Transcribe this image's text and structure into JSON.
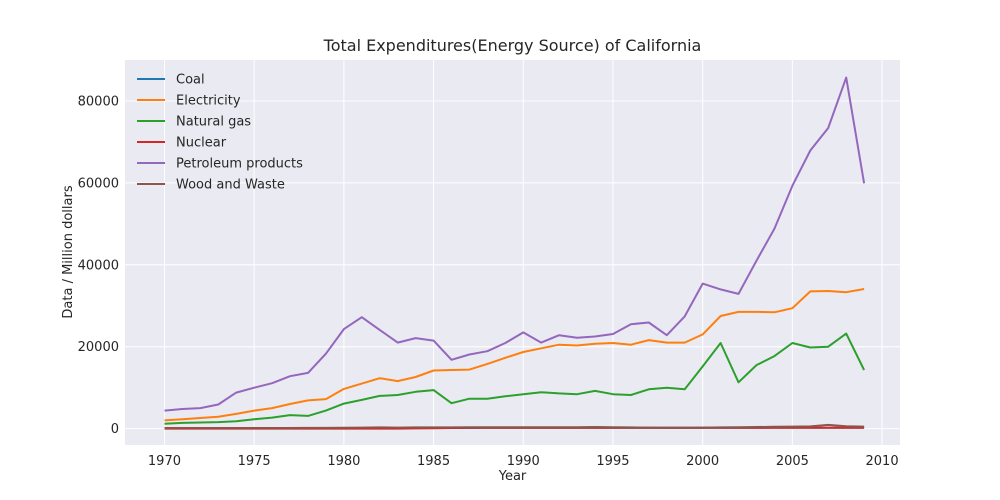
{
  "chart_data": {
    "type": "line",
    "title": "Total Expenditures(Energy Source) of California",
    "xlabel": "Year",
    "ylabel": "Data / Million dollars",
    "xlim": [
      1967.8,
      2011.0
    ],
    "ylim": [
      -4000,
      90000
    ],
    "xticks": [
      1970,
      1975,
      1980,
      1985,
      1990,
      1995,
      2000,
      2005,
      2010
    ],
    "yticks": [
      0,
      20000,
      40000,
      60000,
      80000
    ],
    "grid": true,
    "legend_position": "top-left",
    "x": [
      1970,
      1971,
      1972,
      1973,
      1974,
      1975,
      1976,
      1977,
      1978,
      1979,
      1980,
      1981,
      1982,
      1983,
      1984,
      1985,
      1986,
      1987,
      1988,
      1989,
      1990,
      1991,
      1992,
      1993,
      1994,
      1995,
      1996,
      1997,
      1998,
      1999,
      2000,
      2001,
      2002,
      2003,
      2004,
      2005,
      2006,
      2007,
      2008,
      2009
    ],
    "series": [
      {
        "name": "Coal",
        "color": "#1f77b4",
        "values": [
          120,
          120,
          120,
          120,
          130,
          130,
          130,
          140,
          140,
          150,
          150,
          150,
          150,
          150,
          160,
          160,
          160,
          160,
          170,
          170,
          170,
          170,
          170,
          170,
          170,
          170,
          170,
          170,
          170,
          170,
          180,
          180,
          180,
          180,
          190,
          190,
          200,
          200,
          210,
          200
        ]
      },
      {
        "name": "Electricity",
        "color": "#ff7f0e",
        "values": [
          2000,
          2300,
          2600,
          2900,
          3600,
          4400,
          5000,
          6000,
          6900,
          7200,
          9700,
          11000,
          12300,
          11600,
          12600,
          14200,
          14300,
          14400,
          15800,
          17300,
          18700,
          19600,
          20500,
          20300,
          20700,
          20900,
          20500,
          21600,
          21000,
          21000,
          23000,
          27500,
          28500,
          28500,
          28400,
          29400,
          33500,
          33600,
          33300,
          34100
        ]
      },
      {
        "name": "Natural gas",
        "color": "#2ca02c",
        "values": [
          1200,
          1400,
          1500,
          1600,
          1800,
          2300,
          2700,
          3300,
          3100,
          4400,
          6100,
          7000,
          8000,
          8200,
          9000,
          9400,
          6200,
          7300,
          7300,
          7900,
          8400,
          8900,
          8600,
          8400,
          9200,
          8400,
          8200,
          9600,
          10000,
          9600,
          15200,
          20900,
          11300,
          15500,
          17700,
          20900,
          19800,
          20000,
          23200,
          14300
        ]
      },
      {
        "name": "Nuclear",
        "color": "#d62728",
        "values": [
          0,
          0,
          0,
          0,
          0,
          0,
          0,
          0,
          0,
          0,
          0,
          0,
          0,
          0,
          50,
          100,
          150,
          200,
          200,
          200,
          220,
          220,
          220,
          220,
          230,
          230,
          230,
          200,
          200,
          200,
          200,
          200,
          200,
          200,
          220,
          220,
          220,
          220,
          230,
          230
        ]
      },
      {
        "name": "Petroleum products",
        "color": "#9467bd",
        "values": [
          4400,
          4800,
          5000,
          5900,
          8800,
          10000,
          11100,
          12800,
          13600,
          18300,
          24300,
          27200,
          24100,
          21000,
          22100,
          21500,
          16800,
          18100,
          18900,
          20900,
          23500,
          21000,
          22800,
          22200,
          22500,
          23100,
          25500,
          25900,
          22800,
          27400,
          35400,
          34000,
          32900,
          41000,
          48800,
          59300,
          67900,
          73400,
          85700,
          59900
        ]
      },
      {
        "name": "Wood and Waste",
        "color": "#8c564b",
        "values": [
          150,
          150,
          150,
          150,
          150,
          160,
          160,
          160,
          170,
          180,
          200,
          250,
          300,
          250,
          300,
          300,
          300,
          350,
          350,
          350,
          350,
          350,
          350,
          330,
          400,
          350,
          300,
          250,
          200,
          200,
          250,
          300,
          350,
          400,
          450,
          500,
          550,
          900,
          600,
          500
        ]
      }
    ]
  }
}
